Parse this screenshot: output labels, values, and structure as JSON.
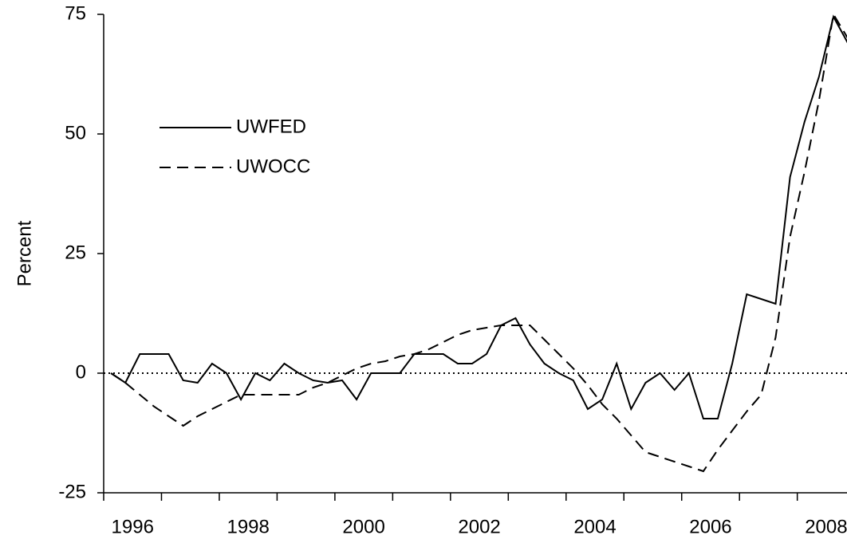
{
  "chart_data": {
    "type": "line",
    "y_label": "Percent",
    "x": [
      1996.125,
      1996.375,
      1996.625,
      1996.875,
      1997.125,
      1997.375,
      1997.625,
      1997.875,
      1998.125,
      1998.375,
      1998.625,
      1998.875,
      1999.125,
      1999.375,
      1999.625,
      1999.875,
      2000.125,
      2000.375,
      2000.625,
      2000.875,
      2001.125,
      2001.375,
      2001.625,
      2001.875,
      2002.125,
      2002.375,
      2002.625,
      2002.875,
      2003.125,
      2003.375,
      2003.625,
      2003.875,
      2004.125,
      2004.375,
      2004.625,
      2004.875,
      2005.125,
      2005.375,
      2005.625,
      2005.875,
      2006.125,
      2006.375,
      2006.625,
      2006.875,
      2007.125,
      2007.375,
      2007.625,
      2007.875,
      2008.125,
      2008.375,
      2008.625,
      2008.875
    ],
    "series": [
      {
        "name": "UWFED",
        "color": "#000000",
        "dash": "solid",
        "values": [
          0,
          -2,
          4,
          4,
          4,
          -1.5,
          -2,
          2,
          0,
          -5.5,
          0,
          -1.5,
          2,
          0,
          -1.5,
          -2,
          -1.5,
          -5.5,
          0,
          0,
          0,
          4,
          4,
          4,
          2,
          2,
          4,
          10,
          11.5,
          6,
          2,
          0,
          -1.5,
          -7.5,
          -5.5,
          2,
          -7.5,
          -2,
          0,
          -3.5,
          0,
          -9.5,
          -9.5,
          2,
          16.5,
          15.5,
          14.5,
          41,
          52.5,
          62,
          74.5,
          69
        ]
      },
      {
        "name": "UWOCC",
        "color": "#000000",
        "dash": "dashed",
        "values": [
          0,
          -2,
          -4.5,
          -7,
          -9,
          -11,
          -9,
          -7.5,
          -6,
          -4.5,
          -4.5,
          -4.5,
          -4.5,
          -4.5,
          -3,
          -2,
          -0.5,
          1,
          2,
          2.5,
          3.5,
          4,
          5,
          6.5,
          8,
          9,
          9.5,
          10,
          10,
          10,
          7,
          4,
          1,
          -2.5,
          -6.5,
          -9.5,
          -13,
          -16.5,
          -17.5,
          -18.5,
          -19.5,
          -20.5,
          -16,
          -12,
          -8,
          -4.5,
          7.5,
          28.5,
          42,
          57,
          75,
          70
        ]
      }
    ],
    "xlim": [
      1996,
      2008.86
    ],
    "xticks": [
      {
        "value": 1996.5,
        "label": "1996"
      },
      {
        "value": 1998.5,
        "label": "1998"
      },
      {
        "value": 2000.5,
        "label": "2000"
      },
      {
        "value": 2002.5,
        "label": "2002"
      },
      {
        "value": 2004.5,
        "label": "2004"
      },
      {
        "value": 2006.5,
        "label": "2006"
      },
      {
        "value": 2008.5,
        "label": "2008"
      }
    ],
    "xtick_marks": [
      1996,
      1997,
      1998,
      1999,
      2000,
      2001,
      2002,
      2003,
      2004,
      2005,
      2006,
      2007,
      2008
    ],
    "ylim": [
      -25,
      75
    ],
    "yticks": [
      -25,
      0,
      25,
      50,
      75
    ],
    "zero_line": true,
    "legend": "upper-left"
  }
}
